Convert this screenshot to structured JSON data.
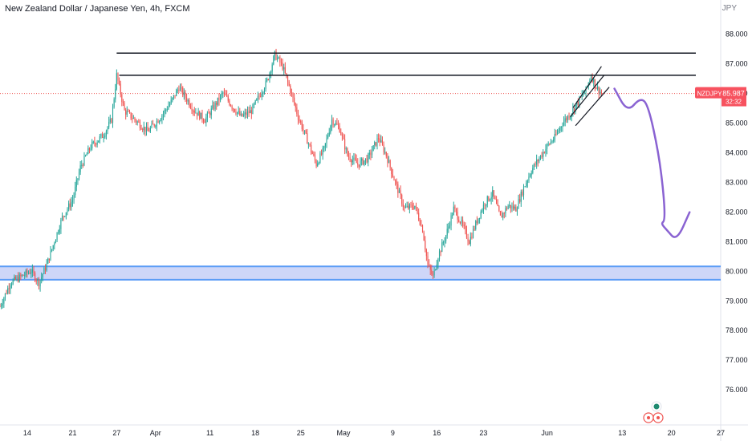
{
  "header": {
    "title": "New Zealand Dollar / Japanese Yen, 4h, FXCM",
    "currency": "JPY"
  },
  "price_tag": {
    "symbol": "NZDJPY",
    "price": "85.987",
    "countdown": "32:32"
  },
  "colors": {
    "up": "#26a69a",
    "down": "#ef5350",
    "zone_fill": "#c5cff7",
    "zone_border": "#5b9cf6",
    "projection": "#8a63d2",
    "price_tag_bg": "#f7525f",
    "level_line": "#131722"
  },
  "chart_data": {
    "type": "candlestick",
    "y_axis": {
      "ylim": [
        74.8,
        88.6
      ],
      "ticks": [
        "76.000",
        "77.000",
        "78.000",
        "79.000",
        "80.000",
        "81.000",
        "82.000",
        "83.000",
        "84.000",
        "85.000",
        "86.000",
        "87.000",
        "88.000"
      ],
      "tick_values": [
        76,
        77,
        78,
        79,
        80,
        81,
        82,
        83,
        84,
        85,
        86,
        87,
        88
      ]
    },
    "x_axis": {
      "ticks": [
        "14",
        "21",
        "27",
        "Apr",
        "11",
        "18",
        "25",
        "May",
        "9",
        "16",
        "23",
        "Jun",
        "13",
        "20",
        "27"
      ],
      "tick_index": [
        21,
        56,
        90,
        120,
        162,
        197,
        232,
        265,
        303,
        337,
        373,
        422,
        480,
        518,
        556
      ]
    },
    "price_path": [
      [
        0,
        78.8
      ],
      [
        8,
        79.6
      ],
      [
        16,
        79.8
      ],
      [
        24,
        80.0
      ],
      [
        30,
        79.6
      ],
      [
        36,
        80.2
      ],
      [
        42,
        81.0
      ],
      [
        48,
        81.8
      ],
      [
        56,
        82.4
      ],
      [
        62,
        83.5
      ],
      [
        70,
        84.2
      ],
      [
        80,
        84.6
      ],
      [
        86,
        85.1
      ],
      [
        90,
        86.6
      ],
      [
        96,
        85.4
      ],
      [
        104,
        85.1
      ],
      [
        114,
        84.7
      ],
      [
        124,
        85.2
      ],
      [
        132,
        85.7
      ],
      [
        138,
        86.2
      ],
      [
        144,
        85.8
      ],
      [
        150,
        85.4
      ],
      [
        158,
        85.1
      ],
      [
        166,
        85.6
      ],
      [
        172,
        86.0
      ],
      [
        180,
        85.5
      ],
      [
        186,
        85.2
      ],
      [
        194,
        85.4
      ],
      [
        200,
        85.9
      ],
      [
        206,
        86.4
      ],
      [
        212,
        87.3
      ],
      [
        218,
        86.9
      ],
      [
        224,
        86.1
      ],
      [
        230,
        85.2
      ],
      [
        238,
        84.3
      ],
      [
        244,
        83.6
      ],
      [
        250,
        84.1
      ],
      [
        256,
        85.1
      ],
      [
        262,
        84.8
      ],
      [
        268,
        83.9
      ],
      [
        276,
        83.6
      ],
      [
        284,
        83.8
      ],
      [
        292,
        84.5
      ],
      [
        298,
        83.9
      ],
      [
        304,
        83.1
      ],
      [
        312,
        82.1
      ],
      [
        320,
        82.2
      ],
      [
        326,
        81.4
      ],
      [
        330,
        80.2
      ],
      [
        334,
        79.8
      ],
      [
        338,
        80.5
      ],
      [
        344,
        81.2
      ],
      [
        350,
        82.1
      ],
      [
        356,
        81.6
      ],
      [
        362,
        81.0
      ],
      [
        368,
        81.7
      ],
      [
        374,
        82.3
      ],
      [
        380,
        82.6
      ],
      [
        386,
        81.8
      ],
      [
        392,
        82.2
      ],
      [
        398,
        82.1
      ],
      [
        404,
        82.8
      ],
      [
        410,
        83.4
      ],
      [
        416,
        83.8
      ],
      [
        422,
        84.2
      ],
      [
        428,
        84.5
      ],
      [
        434,
        85.0
      ],
      [
        440,
        85.3
      ],
      [
        446,
        85.7
      ],
      [
        452,
        86.1
      ],
      [
        456,
        86.6
      ],
      [
        460,
        86.2
      ],
      [
        464,
        85.99
      ]
    ],
    "resistance_levels": [
      87.35,
      86.6
    ],
    "support_zone": [
      79.7,
      80.15
    ],
    "channel": {
      "upper": [
        [
          442,
          85.5
        ],
        [
          464,
          86.9
        ]
      ],
      "middle": [
        [
          440,
          85.2
        ],
        [
          466,
          86.6
        ]
      ],
      "lower": [
        [
          444,
          84.9
        ],
        [
          470,
          86.2
        ]
      ]
    },
    "projection": [
      [
        474,
        86.15
      ],
      [
        484,
        85.35
      ],
      [
        494,
        85.85
      ],
      [
        500,
        85.6
      ],
      [
        508,
        84.0
      ],
      [
        512,
        82.6
      ],
      [
        513,
        81.7
      ],
      [
        510,
        81.6
      ],
      [
        514,
        81.4
      ],
      [
        522,
        81.0
      ],
      [
        532,
        81.98
      ]
    ],
    "last_price": 85.987,
    "last_price_label": "85.987",
    "countdown_label": "32:32"
  }
}
